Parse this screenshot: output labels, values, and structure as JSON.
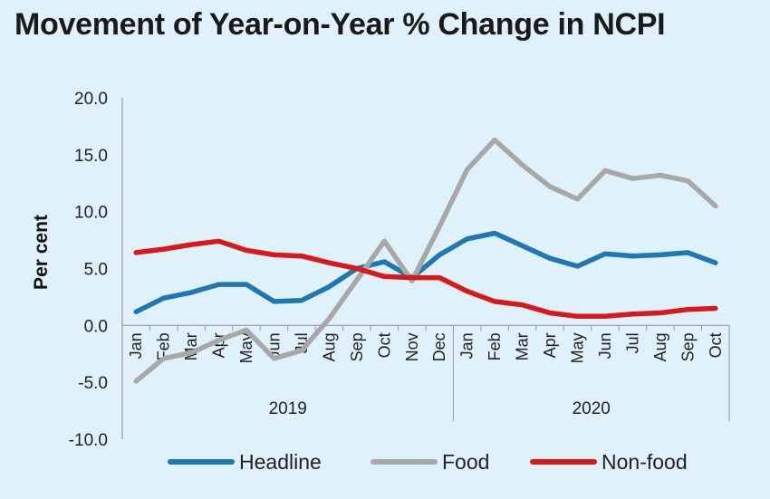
{
  "chart_data": {
    "type": "line",
    "title": "Movement of Year-on-Year % Change in NCPI",
    "ylabel": "Per cent",
    "xlabel": "",
    "ylim": [
      -10,
      20
    ],
    "yticks": [
      "20.0",
      "15.0",
      "10.0",
      "5.0",
      "0.0",
      "-5.0",
      "-10.0"
    ],
    "ytick_values": [
      20,
      15,
      10,
      5,
      0,
      -5,
      -10
    ],
    "categories": [
      "Jan",
      "Feb",
      "Mar",
      "Apr",
      "May",
      "Jun",
      "Jul",
      "Aug",
      "Sep",
      "Oct",
      "Nov",
      "Dec",
      "Jan",
      "Feb",
      "Mar",
      "Apr",
      "May",
      "Jun",
      "Jul",
      "Aug",
      "Sep",
      "Oct"
    ],
    "groups": [
      {
        "label": "2019",
        "count": 12
      },
      {
        "label": "2020",
        "count": 10
      }
    ],
    "grid": false,
    "legend": "bottom",
    "series": [
      {
        "name": "Headline",
        "color": "#1f77b4",
        "values": [
          1.2,
          2.4,
          2.9,
          3.6,
          3.6,
          2.1,
          2.2,
          3.4,
          5.0,
          5.6,
          4.2,
          6.2,
          7.6,
          8.1,
          7.0,
          5.9,
          5.2,
          6.3,
          6.1,
          6.2,
          6.4,
          5.5
        ]
      },
      {
        "name": "Food",
        "color": "#a8a8a8",
        "values": [
          -4.9,
          -2.9,
          -2.4,
          -1.3,
          -0.4,
          -2.9,
          -2.2,
          0.6,
          4.0,
          7.4,
          3.9,
          8.7,
          13.7,
          16.3,
          14.1,
          12.2,
          11.1,
          13.6,
          12.9,
          13.2,
          12.7,
          10.5
        ]
      },
      {
        "name": "Non-food",
        "color": "#d7191c",
        "values": [
          6.4,
          6.7,
          7.1,
          7.4,
          6.6,
          6.2,
          6.1,
          5.5,
          5.0,
          4.3,
          4.2,
          4.2,
          3.0,
          2.1,
          1.8,
          1.1,
          0.8,
          0.8,
          1.0,
          1.1,
          1.4,
          1.5
        ]
      }
    ]
  }
}
